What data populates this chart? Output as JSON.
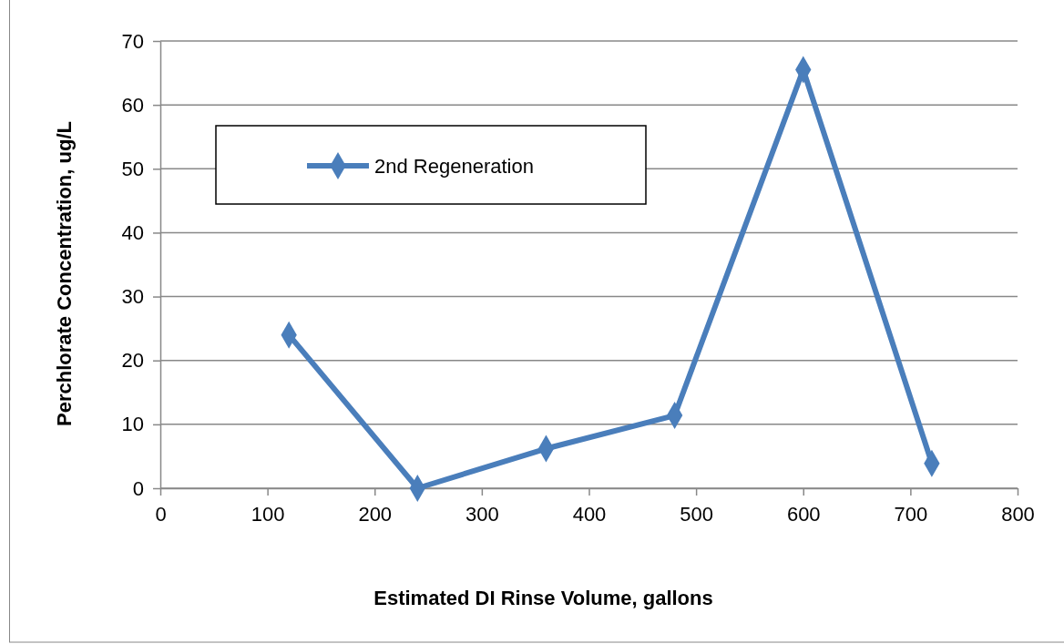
{
  "chart_data": {
    "type": "line",
    "xlabel": "Estimated DI Rinse Volume, gallons",
    "ylabel": "Perchlorate Concentration,  ug/L",
    "x": [
      120,
      240,
      360,
      480,
      600,
      720
    ],
    "series": [
      {
        "name": "2nd Regeneration",
        "color": "#4a7ebb",
        "values": [
          24,
          0,
          6.2,
          11.4,
          65.5,
          3.9
        ]
      }
    ],
    "xlim": [
      0,
      800
    ],
    "xticks": [
      0,
      100,
      200,
      300,
      400,
      500,
      600,
      700,
      800
    ],
    "ylim": [
      0,
      70
    ],
    "yticks": [
      0,
      10,
      20,
      30,
      40,
      50,
      60,
      70
    ],
    "grid": "y",
    "legend": "top left",
    "marker": "diamond",
    "line_style": "solid"
  }
}
